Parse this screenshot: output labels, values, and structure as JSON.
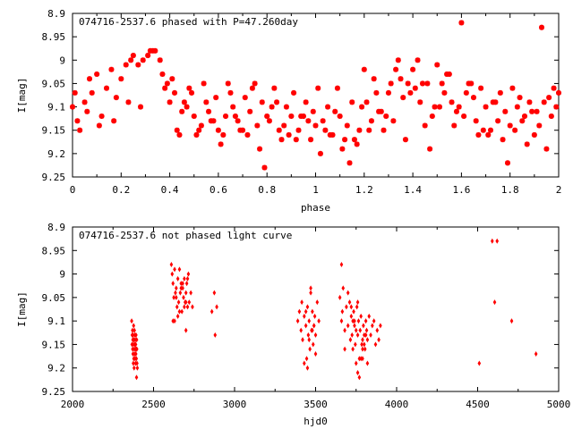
{
  "chart_data": [
    {
      "type": "scatter",
      "title": "074716-2537.6 phased with P=47.260day",
      "xlabel": "phase",
      "ylabel": "I[mag]",
      "xlim": [
        0,
        2
      ],
      "ylim": [
        9.25,
        8.9
      ],
      "y_inverted": true,
      "xticks": [
        "0",
        "0.2",
        "0.4",
        "0.6",
        "0.8",
        "1",
        "1.2",
        "1.4",
        "1.6",
        "1.8",
        "2"
      ],
      "yticks": [
        "8.9",
        "8.95",
        "9",
        "9.05",
        "9.1",
        "9.15",
        "9.2",
        "9.25"
      ],
      "grid": false,
      "color": "#ff0000",
      "x": [
        0.0,
        0.01,
        0.03,
        0.05,
        0.07,
        0.08,
        0.1,
        0.12,
        0.14,
        0.16,
        0.18,
        0.2,
        0.22,
        0.24,
        0.25,
        0.27,
        0.29,
        0.31,
        0.33,
        0.34,
        0.36,
        0.37,
        0.39,
        0.4,
        0.42,
        0.43,
        0.45,
        0.46,
        0.48,
        0.5,
        0.51,
        0.53,
        0.55,
        0.56,
        0.58,
        0.6,
        0.61,
        0.63,
        0.65,
        0.66,
        0.68,
        0.7,
        0.71,
        0.73,
        0.75,
        0.76,
        0.78,
        0.8,
        0.81,
        0.83,
        0.85,
        0.86,
        0.88,
        0.9,
        0.91,
        0.93,
        0.95,
        0.96,
        0.98,
        1.0,
        1.01,
        1.03,
        1.05,
        1.06,
        1.08,
        1.1,
        1.11,
        1.13,
        1.15,
        1.16,
        1.18,
        1.2,
        1.21,
        1.23,
        1.25,
        1.26,
        1.28,
        1.3,
        1.31,
        1.33,
        1.35,
        1.36,
        1.38,
        1.4,
        1.41,
        1.43,
        1.45,
        1.46,
        1.48,
        1.5,
        1.51,
        1.53,
        1.55,
        1.56,
        1.58,
        1.6,
        1.61,
        1.63,
        1.65,
        1.66,
        1.68,
        1.7,
        1.71,
        1.73,
        1.75,
        1.76,
        1.78,
        1.8,
        1.81,
        1.83,
        1.85,
        1.86,
        1.88,
        1.9,
        1.91,
        1.93,
        1.95,
        1.96,
        1.98,
        2.0,
        0.02,
        0.06,
        0.11,
        0.17,
        0.23,
        0.28,
        0.32,
        0.38,
        0.44,
        0.47,
        0.52,
        0.57,
        0.62,
        0.67,
        0.72,
        0.77,
        0.82,
        0.87,
        0.92,
        0.97,
        1.02,
        1.07,
        1.12,
        1.17,
        1.22,
        1.27,
        1.32,
        1.37,
        1.42,
        1.47,
        1.52,
        1.57,
        1.62,
        1.67,
        1.72,
        1.77,
        1.82,
        1.87,
        1.92,
        1.97,
        0.41,
        0.49,
        0.54,
        0.59,
        0.64,
        0.69,
        0.74,
        0.79,
        0.84,
        0.89,
        0.94,
        0.99,
        1.04,
        1.09,
        1.14,
        1.19,
        1.24,
        1.29,
        1.34,
        1.39,
        1.44,
        1.49,
        1.54,
        1.59,
        1.64,
        1.69,
        1.74,
        1.79,
        1.84,
        1.89,
        1.94,
        1.99
      ],
      "y": [
        9.1,
        9.07,
        9.15,
        9.09,
        9.04,
        9.07,
        9.03,
        9.12,
        9.06,
        9.02,
        9.08,
        9.04,
        9.01,
        9.0,
        8.99,
        9.01,
        9.0,
        8.99,
        8.98,
        8.98,
        9.0,
        9.03,
        9.05,
        9.09,
        9.07,
        9.15,
        9.11,
        9.09,
        9.06,
        9.12,
        9.16,
        9.14,
        9.09,
        9.11,
        9.13,
        9.15,
        9.18,
        9.12,
        9.07,
        9.1,
        9.13,
        9.15,
        9.08,
        9.11,
        9.05,
        9.14,
        9.09,
        9.12,
        9.13,
        9.06,
        9.15,
        9.17,
        9.1,
        9.12,
        9.07,
        9.15,
        9.12,
        9.09,
        9.17,
        9.14,
        9.06,
        9.13,
        9.1,
        9.16,
        9.11,
        9.12,
        9.19,
        9.14,
        9.09,
        9.17,
        9.15,
        9.02,
        9.09,
        9.13,
        9.07,
        9.11,
        9.15,
        9.07,
        9.05,
        9.02,
        9.04,
        9.08,
        9.05,
        9.02,
        9.06,
        9.09,
        9.14,
        9.05,
        9.12,
        9.01,
        9.1,
        9.07,
        9.03,
        9.09,
        9.11,
        8.92,
        9.12,
        9.05,
        9.08,
        9.13,
        9.06,
        9.1,
        9.16,
        9.09,
        9.13,
        9.07,
        9.11,
        9.14,
        9.06,
        9.1,
        9.13,
        9.12,
        9.09,
        9.16,
        9.11,
        8.93,
        9.19,
        9.08,
        9.06,
        9.07,
        9.13,
        9.11,
        9.14,
        9.13,
        9.09,
        9.1,
        8.98,
        9.06,
        9.16,
        9.1,
        9.15,
        9.13,
        9.16,
        9.12,
        9.16,
        9.19,
        9.1,
        9.14,
        9.17,
        9.13,
        9.2,
        9.16,
        9.17,
        9.18,
        9.15,
        9.11,
        9.13,
        9.17,
        9.0,
        9.19,
        9.05,
        9.14,
        9.07,
        9.16,
        9.15,
        9.17,
        9.15,
        9.18,
        9.14,
        9.12,
        9.04,
        9.07,
        9.05,
        9.08,
        9.05,
        9.15,
        9.06,
        9.23,
        9.09,
        9.16,
        9.12,
        9.11,
        9.15,
        9.06,
        9.22,
        9.1,
        9.04,
        9.12,
        9.0,
        9.07,
        9.05,
        9.1,
        9.03,
        9.1,
        9.05,
        9.15,
        9.09,
        9.22,
        9.08,
        9.11,
        9.09,
        9.1
      ]
    },
    {
      "type": "scatter",
      "title": "074716-2537.6 not phased light curve",
      "xlabel": "hjd0",
      "ylabel": "I[mag]",
      "xlim": [
        2000,
        5000
      ],
      "ylim": [
        9.25,
        8.9
      ],
      "y_inverted": true,
      "xticks": [
        "2000",
        "2500",
        "3000",
        "3500",
        "4000",
        "4500",
        "5000"
      ],
      "yticks": [
        "8.9",
        "8.95",
        "9",
        "9.05",
        "9.1",
        "9.15",
        "9.2",
        "9.25"
      ],
      "grid": false,
      "color": "#ff0000",
      "x": [
        2365,
        2367,
        2368,
        2370,
        2371,
        2372,
        2373,
        2374,
        2375,
        2376,
        2377,
        2378,
        2379,
        2380,
        2381,
        2382,
        2383,
        2384,
        2385,
        2386,
        2387,
        2388,
        2389,
        2390,
        2391,
        2392,
        2393,
        2394,
        2395,
        2396,
        2397,
        2398,
        2400,
        2610,
        2615,
        2620,
        2625,
        2630,
        2635,
        2640,
        2645,
        2650,
        2655,
        2660,
        2665,
        2670,
        2675,
        2680,
        2685,
        2690,
        2695,
        2700,
        2705,
        2710,
        2715,
        2620,
        2640,
        2660,
        2680,
        2700,
        2720,
        2650,
        2670,
        2690,
        2710,
        2730,
        2740,
        2630,
        2700,
        2860,
        2875,
        2880,
        2890,
        3390,
        3400,
        3410,
        3415,
        3420,
        3430,
        3440,
        3445,
        3450,
        3455,
        3460,
        3465,
        3470,
        3475,
        3480,
        3485,
        3490,
        3495,
        3500,
        3510,
        3520,
        3430,
        3450,
        3470,
        3490,
        3500,
        3460,
        3440,
        3480,
        3650,
        3660,
        3665,
        3670,
        3680,
        3690,
        3700,
        3710,
        3715,
        3720,
        3725,
        3730,
        3735,
        3740,
        3745,
        3750,
        3755,
        3760,
        3765,
        3770,
        3775,
        3780,
        3785,
        3790,
        3795,
        3800,
        3805,
        3810,
        3815,
        3820,
        3830,
        3840,
        3850,
        3860,
        3870,
        3880,
        3890,
        3900,
        3700,
        3720,
        3740,
        3760,
        3780,
        3800,
        3820,
        3750,
        3770,
        3790,
        3810,
        3660,
        3680,
        3730,
        3760,
        3790,
        4510,
        4590,
        4605,
        4620,
        4710,
        4860
      ],
      "y": [
        9.1,
        9.15,
        9.13,
        9.12,
        9.16,
        9.14,
        9.17,
        9.13,
        9.19,
        9.15,
        9.11,
        9.18,
        9.14,
        9.2,
        9.16,
        9.12,
        9.17,
        9.15,
        9.13,
        9.18,
        9.14,
        9.16,
        9.19,
        9.15,
        9.17,
        9.13,
        9.16,
        9.18,
        9.22,
        9.14,
        9.16,
        9.19,
        9.2,
        8.98,
        9.0,
        9.02,
        9.05,
        8.99,
        9.04,
        9.03,
        9.07,
        9.01,
        9.06,
        8.99,
        9.04,
        9.02,
        9.08,
        9.03,
        9.05,
        9.01,
        9.06,
        9.04,
        9.02,
        9.07,
        9.0,
        9.1,
        9.05,
        9.08,
        9.02,
        9.12,
        9.06,
        9.09,
        9.03,
        9.07,
        9.01,
        9.04,
        9.07,
        9.1,
        9.06,
        9.08,
        9.04,
        9.13,
        9.07,
        9.1,
        9.08,
        9.12,
        9.06,
        9.14,
        9.09,
        9.11,
        9.18,
        9.07,
        9.13,
        9.1,
        9.16,
        9.04,
        9.12,
        9.08,
        9.15,
        9.11,
        9.09,
        9.13,
        9.06,
        9.1,
        9.19,
        9.2,
        9.03,
        9.11,
        9.17,
        9.14,
        9.08,
        9.12,
        9.05,
        9.1,
        9.08,
        9.03,
        9.12,
        9.07,
        9.11,
        9.06,
        9.14,
        9.09,
        9.13,
        9.16,
        9.08,
        9.11,
        9.15,
        9.19,
        9.07,
        9.13,
        9.1,
        9.18,
        9.12,
        9.09,
        9.15,
        9.14,
        9.11,
        9.13,
        9.16,
        9.1,
        9.12,
        9.14,
        9.09,
        9.13,
        9.11,
        9.1,
        9.15,
        9.12,
        9.14,
        9.11,
        9.04,
        9.07,
        9.1,
        9.21,
        9.18,
        9.15,
        9.19,
        9.12,
        9.22,
        9.16,
        9.13,
        8.98,
        9.16,
        9.1,
        9.06,
        9.18,
        9.19,
        8.93,
        9.06,
        8.93,
        9.1,
        9.17
      ]
    }
  ]
}
